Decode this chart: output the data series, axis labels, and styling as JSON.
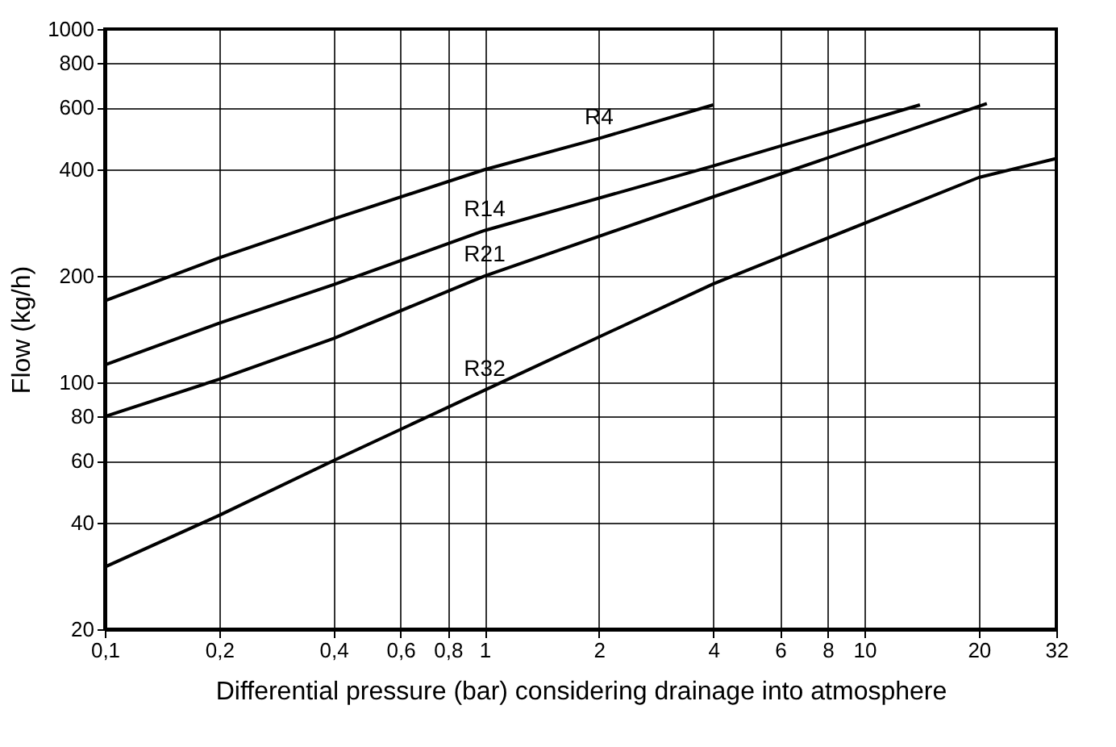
{
  "chart_data": {
    "type": "line",
    "xlabel": "Differential pressure (bar) considering drainage into atmosphere",
    "ylabel": "Flow (kg/h)",
    "log": "xy",
    "grid": true,
    "legend": false,
    "marker": "none",
    "line_style": "solid",
    "xlim": [
      0.1,
      32
    ],
    "ylim": [
      20,
      1000
    ],
    "xticks": [
      {
        "value": 0.1,
        "label": "0,1"
      },
      {
        "value": 0.2,
        "label": "0,2"
      },
      {
        "value": 0.4,
        "label": "0,4"
      },
      {
        "value": 0.6,
        "label": "0,6"
      },
      {
        "value": 0.8,
        "label": "0,8"
      },
      1,
      2,
      4,
      6,
      8,
      10,
      20,
      32
    ],
    "yticks": [
      20,
      40,
      60,
      80,
      100,
      200,
      400,
      600,
      800,
      1000
    ],
    "series": [
      {
        "name": "R4",
        "color": "#000000",
        "x": [
          0.1,
          0.2,
          0.4,
          1,
          2,
          4
        ],
        "values": [
          170,
          225,
          290,
          400,
          490,
          610
        ]
      },
      {
        "name": "R14",
        "color": "#000000",
        "x": [
          0.1,
          0.2,
          0.4,
          1,
          4,
          14
        ],
        "values": [
          112,
          147,
          189,
          269,
          410,
          610
        ]
      },
      {
        "name": "R21",
        "color": "#000000",
        "x": [
          0.1,
          0.2,
          0.4,
          1,
          4,
          21
        ],
        "values": [
          80,
          102,
          133,
          200,
          335,
          615
        ]
      },
      {
        "name": "R32",
        "color": "#000000",
        "x": [
          0.1,
          0.2,
          0.4,
          1,
          4,
          20,
          32
        ],
        "values": [
          30,
          42,
          60,
          95,
          190,
          380,
          430
        ]
      }
    ]
  }
}
